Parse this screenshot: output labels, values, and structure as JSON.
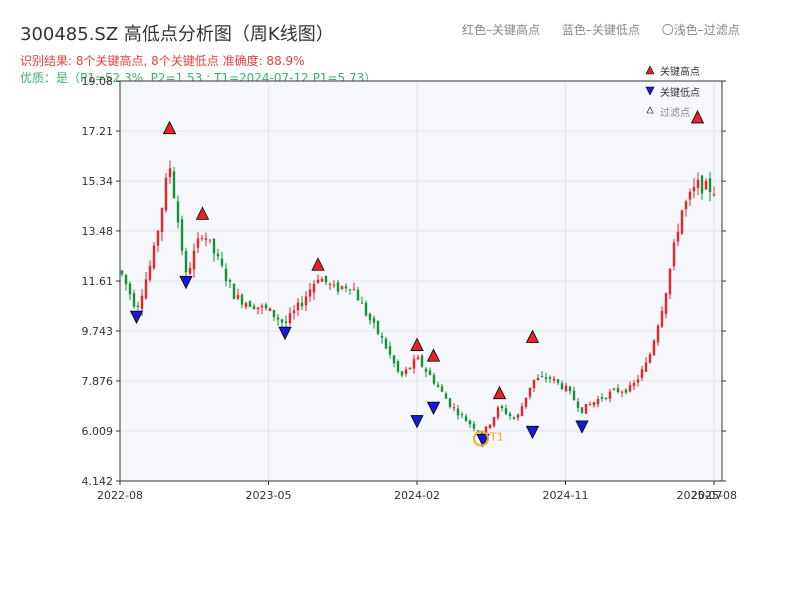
{
  "title": "300485.SZ 高低点分析图（周K线图）",
  "legend_top": {
    "red": "红色–关键高点",
    "blue": "蓝色–关键低点",
    "light": "〇浅色–过滤点"
  },
  "stats_line": "识别结果: 8个关键高点, 8个关键低点   准确度: 88.9%",
  "quality_line": "优质：是（P1=52.3%, P2=1.53 ; T1=2024-07-12 P1=5.73）",
  "legend_box": {
    "high": "关键高点",
    "low": "关键低点",
    "filtered": "过滤点"
  },
  "colors": {
    "up": "#e8232c",
    "down": "#13923a",
    "high_marker": "#e8232c",
    "low_marker": "#1a1ad6",
    "highlight": "#f5a623",
    "plot_bg": "#f5f7fa",
    "grid": "#e1e5ea"
  },
  "chart_data": {
    "type": "candlestick",
    "title": "300485.SZ 高低点分析图（周K线图）",
    "ylim": [
      4.142,
      19.08
    ],
    "yticks": [
      4.142,
      6.009,
      7.876,
      9.743,
      11.61,
      13.48,
      15.34,
      17.21,
      19.08
    ],
    "ytick_labels": [
      "4.142",
      "6.009",
      "7.876",
      "9.743",
      "11.61",
      "13.48",
      "15.34",
      "17.21",
      "19.08"
    ],
    "xticks": [
      "2022-08",
      "2023-05",
      "2024-02",
      "2024-11",
      "2025-08"
    ],
    "xticks_extra": [
      "2025-07"
    ],
    "grid": true,
    "legend_position": "top-right",
    "key_highs": [
      {
        "date": "2022-11",
        "value": 17.3
      },
      {
        "date": "2023-01",
        "value": 14.1
      },
      {
        "date": "2023-08",
        "value": 12.2
      },
      {
        "date": "2024-02",
        "value": 9.2
      },
      {
        "date": "2024-03",
        "value": 8.8
      },
      {
        "date": "2024-07",
        "value": 7.4
      },
      {
        "date": "2024-09",
        "value": 9.5
      },
      {
        "date": "2025-07",
        "value": 17.7
      }
    ],
    "key_lows": [
      {
        "date": "2022-09",
        "value": 10.3
      },
      {
        "date": "2022-12",
        "value": 11.6
      },
      {
        "date": "2023-06",
        "value": 9.7
      },
      {
        "date": "2024-02",
        "value": 6.4
      },
      {
        "date": "2024-03",
        "value": 6.9
      },
      {
        "date": "2024-06",
        "value": 5.7
      },
      {
        "date": "2024-09",
        "value": 6.0
      },
      {
        "date": "2024-12",
        "value": 6.2
      }
    ],
    "highlight_point": {
      "date": "2024-06",
      "value": 5.73,
      "label": "T1"
    },
    "price_path": [
      {
        "date": "2022-08",
        "close": 12.0
      },
      {
        "date": "2022-09",
        "close": 10.6
      },
      {
        "date": "2022-10",
        "close": 12.5
      },
      {
        "date": "2022-11",
        "close": 16.0
      },
      {
        "date": "2022-12",
        "close": 11.8
      },
      {
        "date": "2023-01",
        "close": 13.5
      },
      {
        "date": "2023-02",
        "close": 12.3
      },
      {
        "date": "2023-03",
        "close": 11.0
      },
      {
        "date": "2023-05",
        "close": 10.5
      },
      {
        "date": "2023-06",
        "close": 10.0
      },
      {
        "date": "2023-07",
        "close": 10.8
      },
      {
        "date": "2023-08",
        "close": 11.8
      },
      {
        "date": "2023-09",
        "close": 11.3
      },
      {
        "date": "2023-10",
        "close": 11.5
      },
      {
        "date": "2023-11",
        "close": 10.3
      },
      {
        "date": "2023-12",
        "close": 9.3
      },
      {
        "date": "2024-01",
        "close": 8.0
      },
      {
        "date": "2024-02",
        "close": 8.7
      },
      {
        "date": "2024-03",
        "close": 7.9
      },
      {
        "date": "2024-04",
        "close": 7.0
      },
      {
        "date": "2024-05",
        "close": 6.4
      },
      {
        "date": "2024-06",
        "close": 5.9
      },
      {
        "date": "2024-07",
        "close": 6.9
      },
      {
        "date": "2024-08",
        "close": 6.4
      },
      {
        "date": "2024-09",
        "close": 7.9
      },
      {
        "date": "2024-10",
        "close": 8.0
      },
      {
        "date": "2024-11",
        "close": 7.6
      },
      {
        "date": "2024-12",
        "close": 6.8
      },
      {
        "date": "2025-01",
        "close": 7.2
      },
      {
        "date": "2025-02",
        "close": 7.5
      },
      {
        "date": "2025-03",
        "close": 7.6
      },
      {
        "date": "2025-04",
        "close": 8.6
      },
      {
        "date": "2025-05",
        "close": 11.0
      },
      {
        "date": "2025-06",
        "close": 14.2
      },
      {
        "date": "2025-07",
        "close": 15.2
      },
      {
        "date": "2025-08",
        "close": 15.0
      }
    ]
  }
}
